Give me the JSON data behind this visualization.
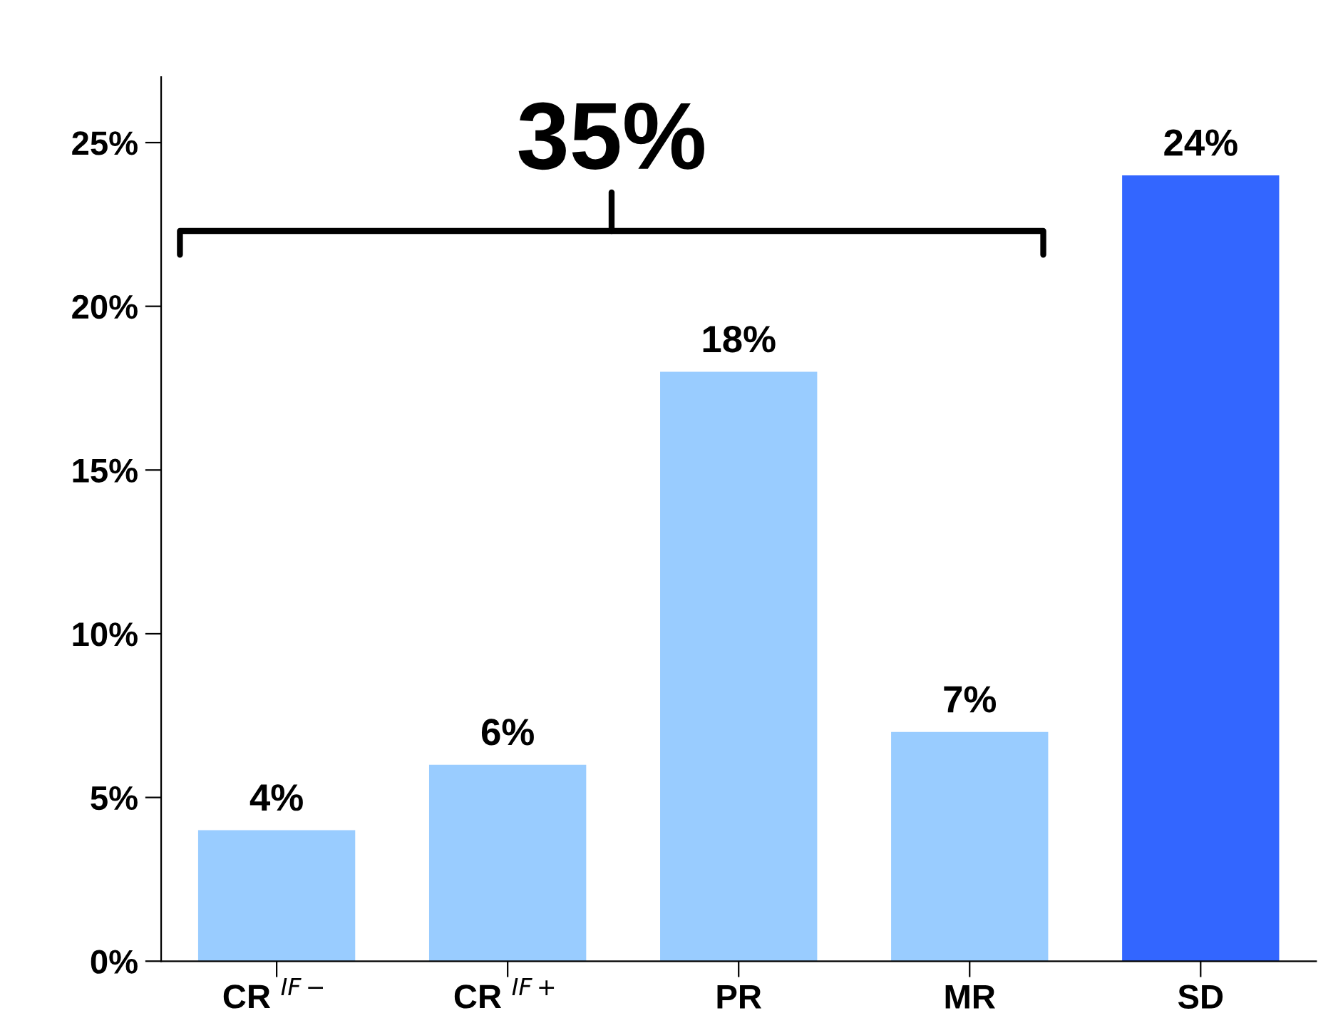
{
  "chart_data": {
    "type": "bar",
    "categories": [
      "CR $^{IF−}$",
      "CR $^{IF+}$",
      "PR",
      "MR",
      "SD"
    ],
    "values": [
      4,
      6,
      18,
      7,
      24
    ],
    "colors": [
      "#99ccff",
      "#99ccff",
      "#99ccff",
      "#99ccff",
      "#3366ff"
    ],
    "value_labels": [
      "4%",
      "6%",
      "18%",
      "7%",
      "24%"
    ],
    "ylim": [
      0,
      27
    ],
    "yticks": [
      {
        "value": 0,
        "label": "0%"
      },
      {
        "value": 5,
        "label": "5%"
      },
      {
        "value": 10,
        "label": "10%"
      },
      {
        "value": 15,
        "label": "15%"
      },
      {
        "value": 20,
        "label": "20%"
      },
      {
        "value": 25,
        "label": "25%"
      }
    ],
    "annotations": [
      "35%"
    ],
    "grid": false,
    "legend": false
  }
}
